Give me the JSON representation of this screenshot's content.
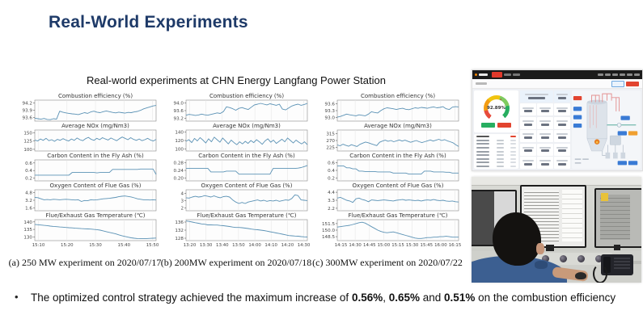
{
  "slide": {
    "title": "Real-World Experiments",
    "subtitle": "Real-world experiments at CHN Energy Langfang Power Station",
    "bullet": {
      "glyph": "•",
      "prefix": "The optimized control strategy achieved the maximum increase of ",
      "v1": "0.56%",
      "sep1": ", ",
      "v2": "0.65%",
      "sep2": " and ",
      "v3": "0.51%",
      "suffix": " on the combustion efficiency"
    }
  },
  "colors": {
    "title_navy": "#1e3a68",
    "chart_line": "#5b92b5",
    "dashboard_accent_red": "#e2442f",
    "dashboard_green": "#27ae60",
    "dashboard_blue": "#3a7bd5",
    "dashboard_orange": "#f0a030"
  },
  "dashboard": {
    "gauge_value": "92.89%"
  },
  "chart_data": [
    {
      "type": "line",
      "caption": "(a)  250 MW experiment on 2020/07/17",
      "x_ticks": [
        "15:10",
        "15:20",
        "15:30",
        "15:40",
        "15:50"
      ],
      "subplots": [
        {
          "title": "Combustion efficiency (%)",
          "y_ticks": [
            "94.2",
            "93.9",
            "93.6"
          ],
          "ylim": [
            93.45,
            94.32
          ],
          "values": [
            93.57,
            93.55,
            93.53,
            93.56,
            93.52,
            93.51,
            93.55,
            93.53,
            93.86,
            93.82,
            93.79,
            93.77,
            93.75,
            93.74,
            93.72,
            93.76,
            93.8,
            93.77,
            93.83,
            93.86,
            93.82,
            93.8,
            93.84,
            93.87,
            93.84,
            93.81,
            93.79,
            93.82,
            93.8,
            93.78,
            93.81,
            93.8,
            93.83,
            93.85,
            93.9,
            93.96,
            94.0,
            94.04,
            94.08,
            94.1
          ]
        },
        {
          "title": "Average NOx (mg/Nm3)",
          "y_ticks": [
            "150",
            "125",
            "100"
          ],
          "ylim": [
            95,
            158
          ],
          "values": [
            128,
            125,
            131,
            127,
            133,
            126,
            129,
            124,
            130,
            127,
            132,
            128,
            125,
            131,
            127,
            134,
            129,
            126,
            132,
            136,
            130,
            127,
            133,
            129,
            135,
            131,
            128,
            134,
            130,
            126,
            132,
            137,
            133,
            129,
            135,
            130,
            127,
            131,
            126,
            129,
            133,
            128,
            125,
            130
          ]
        },
        {
          "title": "Carbon Content in the Fly Ash (%)",
          "y_ticks": [
            "0.6",
            "0.4",
            "0.2"
          ],
          "ylim": [
            0.13,
            0.68
          ],
          "values": [
            0.28,
            0.28,
            0.28,
            0.28,
            0.28,
            0.28,
            0.28,
            0.28,
            0.28,
            0.28,
            0.28,
            0.28,
            0.35,
            0.35,
            0.35,
            0.35,
            0.35,
            0.35,
            0.35,
            0.35,
            0.34,
            0.35,
            0.35,
            0.35,
            0.35,
            0.43,
            0.43,
            0.43,
            0.43,
            0.43,
            0.43,
            0.43,
            0.43,
            0.43,
            0.44,
            0.44,
            0.44,
            0.44,
            0.44,
            0.3
          ]
        },
        {
          "title": "Oxygen Content of Flue Gas (%)",
          "y_ticks": [
            "4.8",
            "3.2",
            "1.6"
          ],
          "ylim": [
            1.0,
            5.4
          ],
          "values": [
            3.8,
            3.75,
            3.5,
            3.3,
            3.35,
            3.3,
            3.4,
            3.35,
            3.3,
            3.35,
            3.4,
            3.35,
            3.3,
            3.25,
            3.3,
            2.95,
            3.15,
            3.1,
            3.3,
            3.25,
            3.3,
            3.4,
            3.5,
            3.55,
            3.6,
            3.7,
            3.8,
            3.95,
            4.05,
            4.1,
            4.0,
            3.9,
            3.7,
            3.5,
            3.4,
            3.3,
            3.3,
            3.25,
            3.3,
            3.25
          ]
        },
        {
          "title": "Flue/Exhaust Gas Temperature (℃)",
          "y_ticks": [
            "140",
            "135",
            "130"
          ],
          "ylim": [
            127.5,
            141.5
          ],
          "values": [
            138.3,
            138.1,
            137.9,
            137.7,
            137.5,
            137.2,
            137.0,
            136.8,
            136.6,
            136.5,
            136.3,
            136.1,
            136.0,
            135.8,
            135.7,
            135.5,
            135.4,
            135.3,
            135.2,
            135.0,
            134.8,
            134.5,
            134.0,
            133.5,
            133.0,
            132.5,
            132.0,
            131.4,
            130.8,
            130.3,
            129.8,
            129.4,
            129.1,
            128.9,
            128.8,
            128.8,
            128.9,
            129.0,
            129.1,
            129.2
          ]
        }
      ]
    },
    {
      "type": "line",
      "caption": "(b)  200MW experiment on 2020/07/18",
      "x_ticks": [
        "13:20",
        "13:30",
        "13:40",
        "13:50",
        "14:00",
        "14:10",
        "14:20",
        "14:30"
      ],
      "subplots": [
        {
          "title": "Combustion efficiency (%)",
          "y_ticks": [
            "94.0",
            "93.6",
            "93.2"
          ],
          "ylim": [
            93.05,
            94.15
          ],
          "values": [
            93.36,
            93.4,
            93.38,
            93.35,
            93.37,
            93.42,
            93.38,
            93.36,
            93.4,
            93.44,
            93.48,
            93.45,
            93.55,
            93.8,
            93.76,
            93.7,
            93.62,
            93.72,
            93.76,
            93.7,
            93.66,
            93.78,
            93.9,
            93.94,
            93.98,
            93.94,
            93.9,
            93.96,
            93.92,
            93.88,
            93.94,
            93.68,
            93.64,
            93.74,
            93.84,
            93.9,
            93.94,
            93.88,
            93.92,
            93.98
          ]
        },
        {
          "title": "Average NOx (mg/Nm3)",
          "y_ticks": [
            "140",
            "120",
            "100"
          ],
          "ylim": [
            95,
            145
          ],
          "values": [
            118,
            122,
            115,
            125,
            119,
            127,
            121,
            114,
            124,
            117,
            128,
            122,
            116,
            126,
            119,
            112,
            121,
            115,
            110,
            117,
            112,
            118,
            113,
            120,
            115,
            122,
            117,
            111,
            119,
            124,
            116,
            121,
            113,
            118,
            123,
            117,
            126,
            120,
            114,
            121,
            116,
            112,
            117,
            110
          ]
        },
        {
          "title": "Carbon Content in the Fly Ash (%)",
          "y_ticks": [
            "0.28",
            "0.24",
            "0.20"
          ],
          "ylim": [
            0.185,
            0.295
          ],
          "values": [
            0.251,
            0.251,
            0.251,
            0.251,
            0.251,
            0.251,
            0.251,
            0.251,
            0.232,
            0.232,
            0.232,
            0.232,
            0.232,
            0.236,
            0.236,
            0.236,
            0.236,
            0.22,
            0.22,
            0.22,
            0.22,
            0.22,
            0.22,
            0.22,
            0.22,
            0.22,
            0.22,
            0.22,
            0.25,
            0.25,
            0.25,
            0.25,
            0.25,
            0.25,
            0.25,
            0.25,
            0.252,
            0.255,
            0.26,
            0.266
          ]
        },
        {
          "title": "Oxygen Content of Flue Gas (%)",
          "y_ticks": [
            "4",
            "3",
            "2"
          ],
          "ylim": [
            1.6,
            4.5
          ],
          "values": [
            3.4,
            3.35,
            3.5,
            3.6,
            3.5,
            3.55,
            3.7,
            3.6,
            3.5,
            3.65,
            3.5,
            3.4,
            3.55,
            3.6,
            3.5,
            3.1,
            2.8,
            2.6,
            2.75,
            2.6,
            2.8,
            2.9,
            3.0,
            3.1,
            2.95,
            3.05,
            2.9,
            3.0,
            2.95,
            3.05,
            2.9,
            3.0,
            3.1,
            3.05,
            3.3,
            3.8,
            3.7,
            3.1,
            3.05,
            3.0
          ]
        },
        {
          "title": "Flue/Exhaust Gas Temperature (℃)",
          "y_ticks": [
            "136",
            "132",
            "128"
          ],
          "ylim": [
            126.8,
            137.2
          ],
          "values": [
            136.5,
            136.3,
            136.0,
            135.7,
            135.4,
            135.1,
            134.9,
            134.6,
            134.6,
            134.5,
            134.5,
            134.3,
            134.2,
            134.0,
            133.8,
            133.5,
            133.3,
            133.3,
            133.2,
            133.0,
            132.8,
            132.5,
            132.3,
            132.2,
            132.0,
            131.8,
            131.5,
            131.2,
            130.9,
            130.6,
            130.3,
            130.0,
            129.7,
            129.3,
            129.2,
            129.1,
            129.0,
            128.8,
            128.7,
            128.6
          ]
        }
      ]
    },
    {
      "type": "line",
      "caption": "(c)  300MW experiment on 2020/07/22",
      "x_ticks": [
        "14:15",
        "14:30",
        "14:45",
        "15:00",
        "15:15",
        "15:30",
        "15:45",
        "16:00",
        "16:15"
      ],
      "subplots": [
        {
          "title": "Combustion efficiency (%)",
          "y_ticks": [
            "93.6",
            "93.3",
            "93.0"
          ],
          "ylim": [
            92.85,
            93.75
          ],
          "values": [
            93.02,
            93.05,
            93.1,
            93.15,
            93.12,
            93.1,
            93.08,
            93.12,
            93.1,
            93.08,
            93.15,
            93.25,
            93.22,
            93.2,
            93.3,
            93.38,
            93.42,
            93.4,
            93.38,
            93.35,
            93.38,
            93.4,
            93.36,
            93.34,
            93.38,
            93.42,
            93.4,
            93.44,
            93.42,
            93.4,
            93.44,
            93.46,
            93.42,
            93.44,
            93.47,
            93.38,
            93.35,
            93.45,
            93.47,
            93.46
          ]
        },
        {
          "title": "Average NOx (mg/Nm3)",
          "y_ticks": [
            "315",
            "270",
            "225"
          ],
          "ylim": [
            200,
            340
          ],
          "values": [
            240,
            235,
            245,
            238,
            232,
            242,
            236,
            230,
            244,
            252,
            260,
            255,
            248,
            242,
            236,
            258,
            266,
            272,
            265,
            270,
            262,
            268,
            274,
            266,
            272,
            265,
            258,
            264,
            270,
            262,
            256,
            262,
            268,
            274,
            266,
            272,
            278,
            270,
            276,
            268,
            262,
            255,
            242,
            230
          ]
        },
        {
          "title": "Carbon Content in the Fly Ash (%)",
          "y_ticks": [
            "0.6",
            "0.4",
            "0.2"
          ],
          "ylim": [
            0.12,
            0.68
          ],
          "values": [
            0.52,
            0.52,
            0.52,
            0.47,
            0.47,
            0.44,
            0.44,
            0.38,
            0.38,
            0.37,
            0.37,
            0.37,
            0.37,
            0.36,
            0.36,
            0.36,
            0.36,
            0.36,
            0.33,
            0.33,
            0.33,
            0.33,
            0.33,
            0.3,
            0.3,
            0.3,
            0.3,
            0.3,
            0.38,
            0.38,
            0.38,
            0.36,
            0.36,
            0.36,
            0.36,
            0.35,
            0.35,
            0.33,
            0.33,
            0.33
          ]
        },
        {
          "title": "Oxygen Content of Flue Gas (%)",
          "y_ticks": [
            "4.4",
            "3.3",
            "2.2"
          ],
          "ylim": [
            1.85,
            4.75
          ],
          "values": [
            3.6,
            3.7,
            3.5,
            3.3,
            3.2,
            3.0,
            3.5,
            3.6,
            3.4,
            3.3,
            3.1,
            3.35,
            3.3,
            3.25,
            3.3,
            3.35,
            3.3,
            3.25,
            3.2,
            3.3,
            3.35,
            3.4,
            3.3,
            3.35,
            3.3,
            3.25,
            3.3,
            3.2,
            3.3,
            3.35,
            3.3,
            3.4,
            3.3,
            3.25,
            3.3,
            3.2,
            3.15,
            3.2,
            3.1,
            3.05
          ]
        },
        {
          "title": "Flue/Exhaust Gas Temperature (℃)",
          "y_ticks": [
            "151.5",
            "150.0",
            "148.5"
          ],
          "ylim": [
            147.6,
            152.4
          ],
          "values": [
            150.7,
            150.8,
            150.9,
            151.0,
            151.1,
            151.3,
            151.5,
            151.7,
            151.8,
            151.6,
            151.2,
            150.8,
            150.4,
            150.0,
            149.7,
            149.5,
            149.4,
            149.5,
            149.6,
            149.4,
            149.2,
            149.0,
            148.8,
            148.6,
            148.4,
            148.2,
            148.1,
            148.1,
            148.2,
            148.3,
            148.3,
            148.4,
            148.4,
            148.5,
            148.5,
            148.6,
            148.5,
            148.4,
            148.4,
            148.4
          ]
        }
      ]
    }
  ]
}
